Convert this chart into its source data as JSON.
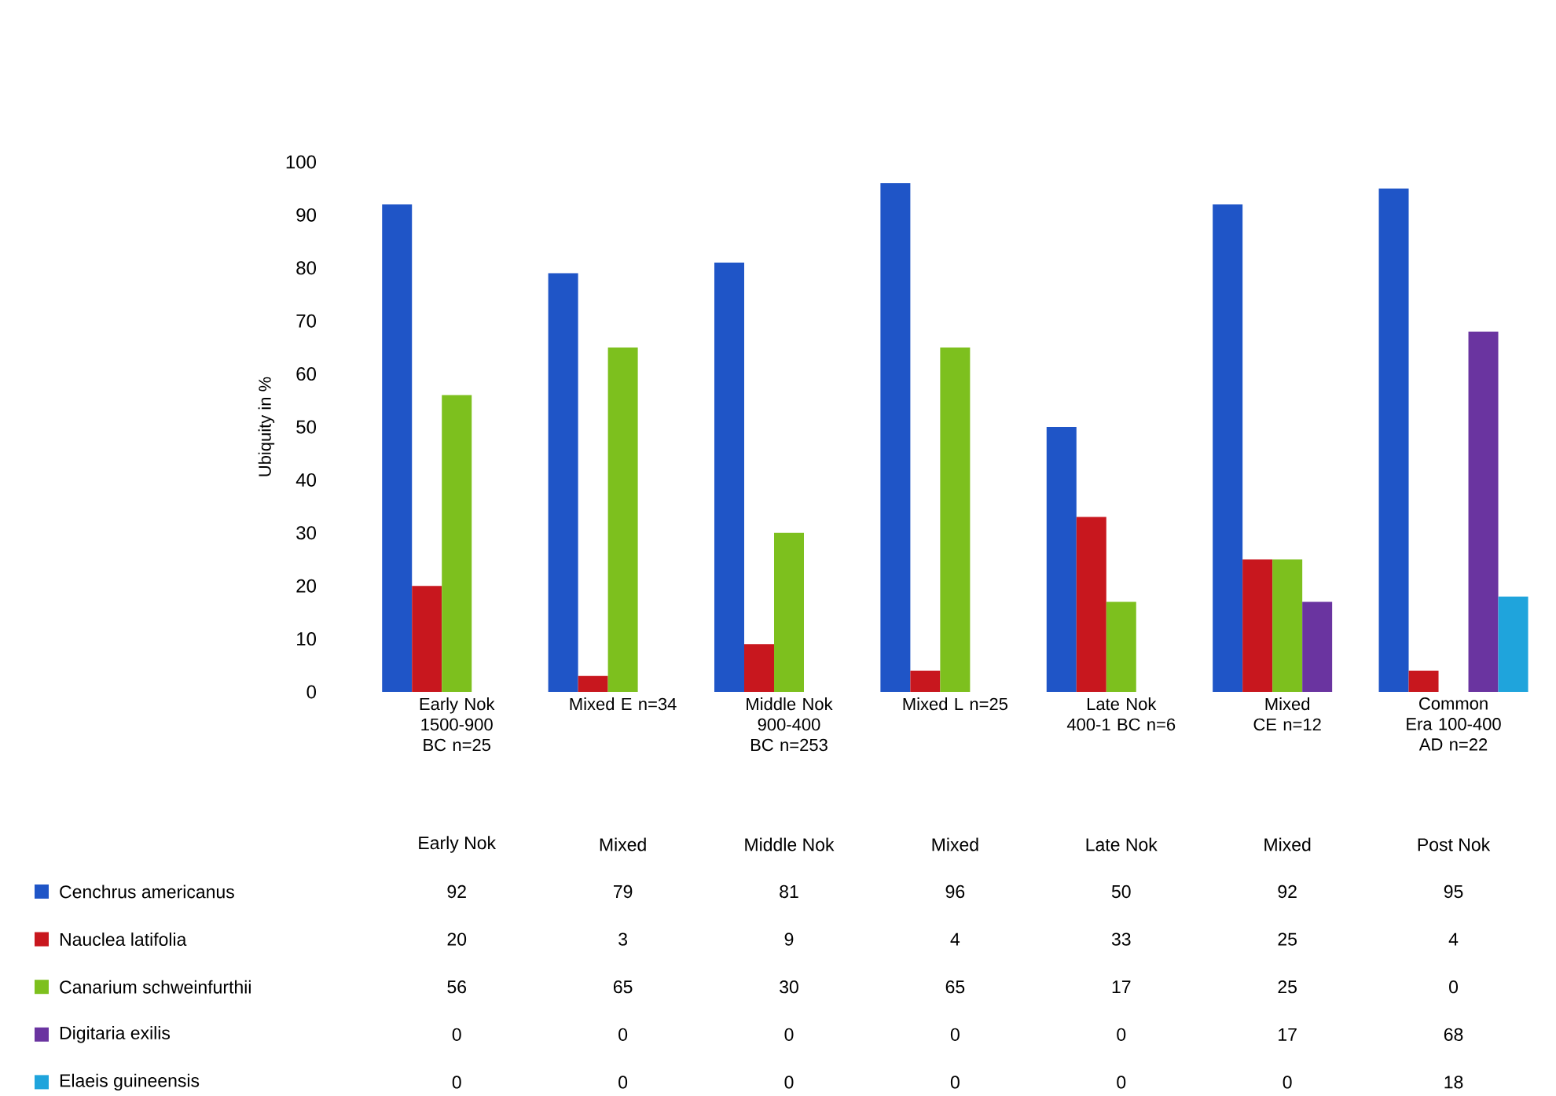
{
  "chart_data": {
    "type": "bar",
    "ylabel": "Ubiquity in %",
    "categories": [
      "Early Nok 1500-900 BC n=25",
      "Mixed E n=34",
      "Middle Nok 900-400 BC n=253",
      "Mixed  L n=25",
      "Late Nok 400-1 BC n=6",
      "Mixed CE n=12",
      "Common Era 100-400 AD n=22"
    ],
    "series": [
      {
        "name": "Cenchrus americanus",
        "color": "#1f55c7",
        "values": [
          92,
          79,
          81,
          96,
          50,
          92,
          95
        ]
      },
      {
        "name": "Nauclea latifolia",
        "color": "#c8171e",
        "values": [
          20,
          3,
          9,
          4,
          33,
          25,
          4
        ]
      },
      {
        "name": "Canarium schweinfurthii",
        "color": "#7dc01e",
        "values": [
          56,
          65,
          30,
          65,
          17,
          25,
          0
        ]
      },
      {
        "name": "Digitaria exilis",
        "color": "#6a34a0",
        "values": [
          0,
          0,
          0,
          0,
          0,
          17,
          68
        ]
      },
      {
        "name": "Elaeis guineensis",
        "color": "#1fa4dc",
        "values": [
          0,
          0,
          0,
          0,
          0,
          0,
          18
        ]
      }
    ],
    "annotations": [
      "Early Nok",
      "Mixed",
      "Middle Nok",
      "Mixed",
      "Late Nok",
      "Mixed",
      "Post Nok"
    ],
    "ylim": [
      0,
      100
    ],
    "yticks": [
      0,
      10,
      20,
      30,
      40,
      50,
      60,
      70,
      80,
      90,
      100
    ],
    "data_labels": true,
    "legend": "bottom",
    "grid": false
  }
}
